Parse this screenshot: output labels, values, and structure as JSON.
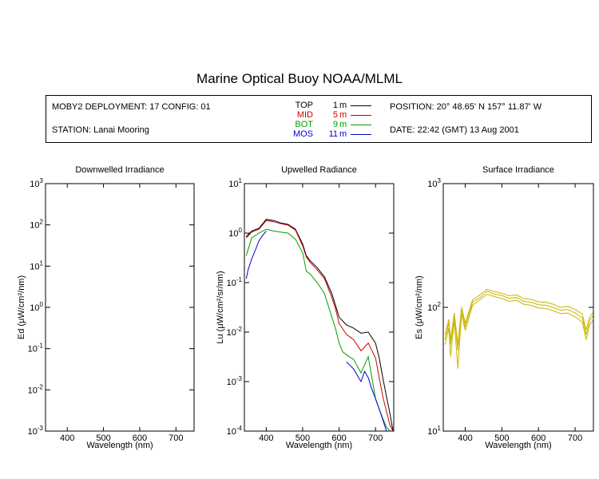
{
  "title": "Marine Optical Buoy NOAA/MLML",
  "info": {
    "deployment": "MOBY2 DEPLOYMENT: 17 CONFIG: 01",
    "station": "STATION: Lanai Mooring",
    "position": "POSITION: 20° 48.65' N   157° 11.87' W",
    "date": "DATE: 22:42 (GMT) 13 Aug 2001"
  },
  "legend": [
    {
      "label": "TOP",
      "depth": "1",
      "unit": "m",
      "color": "#000000"
    },
    {
      "label": "MID",
      "depth": "5",
      "unit": "m",
      "color": "#cc0000"
    },
    {
      "label": "BOT",
      "depth": "9",
      "unit": "m",
      "color": "#00a000"
    },
    {
      "label": "MOS",
      "depth": "11",
      "unit": "m",
      "color": "#0000cc"
    }
  ],
  "chart_data": [
    {
      "type": "line",
      "title": "Downwelled Irradiance",
      "xlabel": "Wavelength (nm)",
      "ylabel": "Ed  (μW/cm²/nm)",
      "xlim": [
        340,
        750
      ],
      "ylim": [
        0.001,
        1000
      ],
      "yscale": "log",
      "xticks": [
        "400",
        "500",
        "600",
        "700"
      ],
      "yticks": [
        {
          "base": "10",
          "exp": "-3"
        },
        {
          "base": "10",
          "exp": "-2"
        },
        {
          "base": "10",
          "exp": "-1"
        },
        {
          "base": "10",
          "exp": "0"
        },
        {
          "base": "10",
          "exp": "1"
        },
        {
          "base": "10",
          "exp": "2"
        },
        {
          "base": "10",
          "exp": "3"
        }
      ],
      "series": []
    },
    {
      "type": "line",
      "title": "Upwelled Radiance",
      "xlabel": "Wavelength (nm)",
      "ylabel": "Lu  (μW/cm²/sr/nm)",
      "xlim": [
        340,
        750
      ],
      "ylim": [
        0.0001,
        10
      ],
      "yscale": "log",
      "xticks": [
        "400",
        "500",
        "600",
        "700"
      ],
      "yticks": [
        {
          "base": "10",
          "exp": "-4"
        },
        {
          "base": "10",
          "exp": "-3"
        },
        {
          "base": "10",
          "exp": "-2"
        },
        {
          "base": "10",
          "exp": "-1"
        },
        {
          "base": "10",
          "exp": "0"
        },
        {
          "base": "10",
          "exp": "1"
        }
      ],
      "series": [
        {
          "name": "TOP",
          "color": "#000000",
          "x": [
            345,
            360,
            380,
            400,
            420,
            440,
            460,
            480,
            500,
            510,
            520,
            540,
            560,
            580,
            590,
            600,
            620,
            640,
            660,
            680,
            700,
            710,
            720,
            730,
            740,
            748
          ],
          "y": [
            0.85,
            1.1,
            1.25,
            1.9,
            1.8,
            1.6,
            1.5,
            1.2,
            0.6,
            0.35,
            0.28,
            0.2,
            0.13,
            0.06,
            0.035,
            0.02,
            0.014,
            0.012,
            0.0095,
            0.01,
            0.006,
            0.003,
            0.0012,
            0.0005,
            0.00022,
            0.0001
          ]
        },
        {
          "name": "MID",
          "color": "#cc0000",
          "x": [
            345,
            360,
            380,
            400,
            420,
            440,
            460,
            480,
            500,
            510,
            520,
            540,
            560,
            580,
            590,
            600,
            620,
            640,
            660,
            680,
            700,
            710,
            720,
            730,
            740,
            748
          ],
          "y": [
            0.8,
            1.05,
            1.2,
            1.8,
            1.7,
            1.55,
            1.45,
            1.15,
            0.55,
            0.33,
            0.26,
            0.18,
            0.12,
            0.05,
            0.03,
            0.015,
            0.009,
            0.007,
            0.0042,
            0.006,
            0.003,
            0.0012,
            0.0005,
            0.00025,
            0.00013,
            0.0001
          ]
        },
        {
          "name": "BOT",
          "color": "#00a000",
          "x": [
            345,
            360,
            380,
            400,
            420,
            440,
            460,
            480,
            500,
            510,
            520,
            540,
            560,
            580,
            590,
            600,
            610,
            620,
            640,
            660,
            680,
            700,
            710,
            720,
            730,
            740
          ],
          "y": [
            0.35,
            0.8,
            1.0,
            1.2,
            1.1,
            1.05,
            1.0,
            0.75,
            0.4,
            0.17,
            0.15,
            0.1,
            0.06,
            0.02,
            0.012,
            0.006,
            0.004,
            0.0035,
            0.0028,
            0.0015,
            0.0032,
            0.00045,
            0.00028,
            0.00018,
            0.00012,
            0.0001
          ]
        },
        {
          "name": "MOS",
          "color": "#0000cc",
          "x": [
            345,
            350,
            360,
            370,
            380,
            390,
            400,
            620,
            640,
            660,
            670,
            680,
            690,
            700,
            710,
            720,
            730
          ],
          "y": [
            0.12,
            0.18,
            0.3,
            0.45,
            0.7,
            0.9,
            1.1,
            0.0025,
            0.0018,
            0.001,
            0.0016,
            0.0012,
            0.0007,
            0.00045,
            0.00028,
            0.00017,
            0.0001
          ],
          "breakAfter": 6
        }
      ]
    },
    {
      "type": "line",
      "title": "Surface Irradiance",
      "xlabel": "Wavelength (nm)",
      "ylabel": "Es  (μW/cm²/nm)",
      "xlim": [
        340,
        750
      ],
      "ylim": [
        10,
        1000
      ],
      "yscale": "log",
      "xticks": [
        "400",
        "500",
        "600",
        "700"
      ],
      "yticks": [
        {
          "base": "10",
          "exp": "1"
        },
        {
          "base": "10",
          "exp": "2"
        },
        {
          "base": "10",
          "exp": "3"
        }
      ],
      "series": [
        {
          "color": "#c8b400",
          "x": [
            345,
            355,
            360,
            370,
            380,
            390,
            400,
            420,
            440,
            460,
            480,
            500,
            520,
            540,
            560,
            580,
            600,
            620,
            640,
            660,
            680,
            700,
            720,
            730,
            740,
            748
          ],
          "y": [
            55,
            75,
            50,
            85,
            45,
            95,
            70,
            110,
            120,
            135,
            128,
            125,
            118,
            120,
            112,
            110,
            105,
            104,
            100,
            95,
            96,
            90,
            82,
            60,
            78,
            85
          ]
        },
        {
          "color": "#c8b400",
          "x": [
            345,
            355,
            360,
            370,
            380,
            390,
            400,
            420,
            440,
            460,
            480,
            500,
            520,
            540,
            560,
            580,
            600,
            620,
            640,
            660,
            680,
            700,
            720,
            730,
            740,
            748
          ],
          "y": [
            50,
            68,
            40,
            78,
            32,
            88,
            65,
            104,
            115,
            128,
            122,
            118,
            112,
            114,
            106,
            104,
            99,
            98,
            94,
            89,
            90,
            84,
            76,
            55,
            72,
            78
          ]
        },
        {
          "color": "#c8b400",
          "x": [
            345,
            355,
            360,
            370,
            380,
            390,
            400,
            420,
            440,
            460,
            480,
            500,
            520,
            540,
            560,
            580,
            600,
            620,
            640,
            660,
            680,
            700,
            720,
            730,
            740,
            748
          ],
          "y": [
            60,
            80,
            55,
            90,
            50,
            100,
            75,
            115,
            126,
            140,
            134,
            130,
            124,
            126,
            118,
            116,
            111,
            110,
            106,
            100,
            102,
            96,
            88,
            66,
            84,
            90
          ]
        }
      ]
    }
  ]
}
